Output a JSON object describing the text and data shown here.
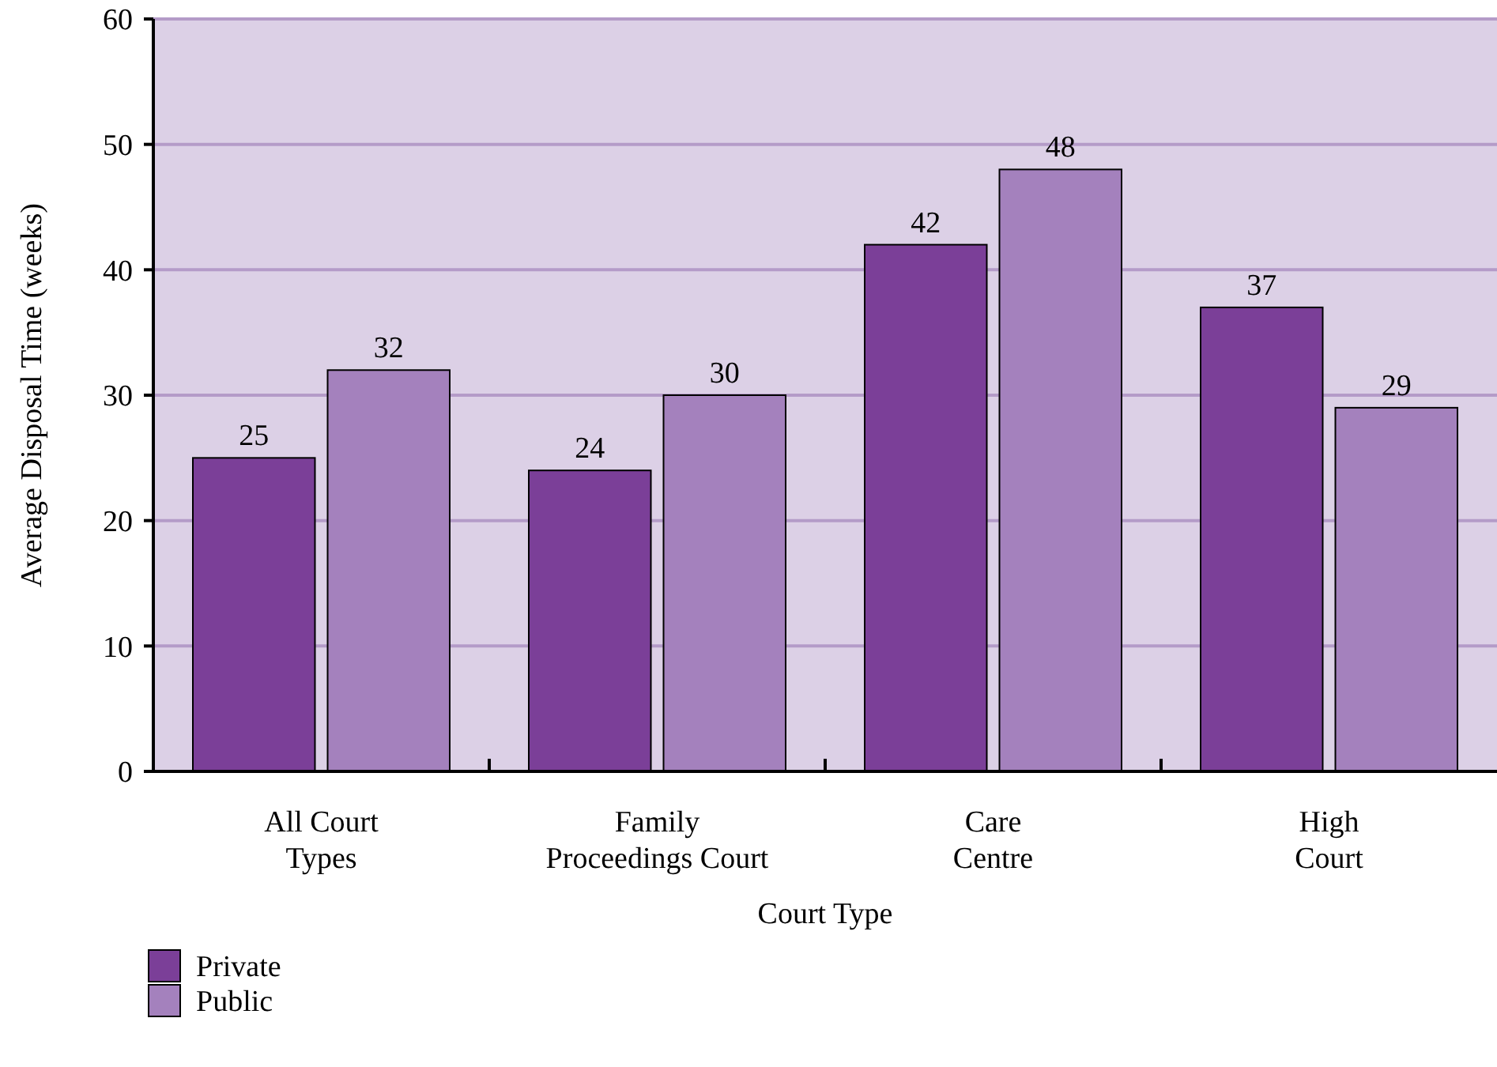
{
  "chart_data": {
    "type": "bar",
    "xlabel": "Court Type",
    "ylabel": "Average Disposal Time (weeks)",
    "categories": [
      "All Court\nTypes",
      "Family\nProceedings Court",
      "Care\nCentre",
      "High\nCourt"
    ],
    "series": [
      {
        "name": "Private",
        "color": "#7b3f98",
        "values": [
          25,
          24,
          42,
          37
        ]
      },
      {
        "name": "Public",
        "color": "#a481bd",
        "values": [
          32,
          30,
          48,
          29
        ]
      }
    ],
    "ylim": [
      0,
      60
    ],
    "yticks": [
      0,
      10,
      20,
      30,
      40,
      50,
      60
    ],
    "grid": "y",
    "legend": "bottom left",
    "data_labels": true
  }
}
